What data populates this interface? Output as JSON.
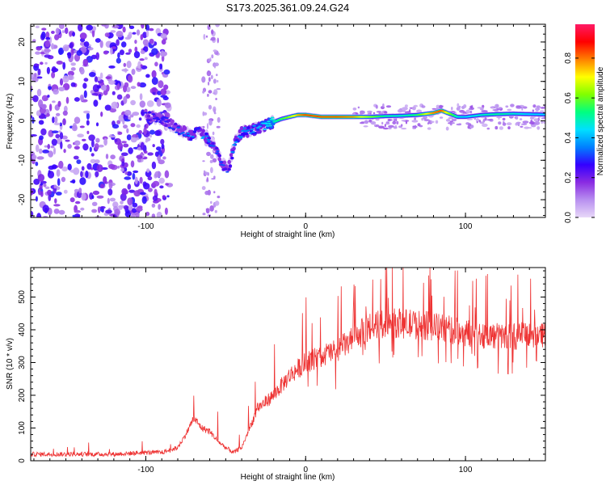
{
  "chart_data": [
    {
      "type": "heatmap",
      "title": "S173.2025.361.09.24.G24",
      "xlabel": "Height of straight line (km)",
      "ylabel": "Frequency (Hz)",
      "xlim": [
        -172,
        150
      ],
      "ylim": [
        -24.5,
        24.5
      ],
      "xticks": [
        -100,
        0,
        100
      ],
      "xtick_labels": [
        "-100",
        "0",
        "100"
      ],
      "yticks": [
        -20,
        -10,
        0,
        10,
        20
      ],
      "ytick_labels": [
        "-20",
        "-10",
        "0",
        "10",
        "20"
      ],
      "colorbar": {
        "label": "Normalized spectral amplitude",
        "range": [
          0,
          0.97
        ],
        "ticks": [
          0.0,
          0.2,
          0.4,
          0.6,
          0.8
        ],
        "tick_labels": [
          "0.0",
          "0.2",
          "0.4",
          "0.6",
          "0.8"
        ],
        "colormap": [
          "#e8d8f8",
          "#b890f0",
          "#8a2be2",
          "#3300ff",
          "#0080ff",
          "#00e0ff",
          "#00ff80",
          "#80ff00",
          "#ffff00",
          "#ff8000",
          "#ff0000",
          "#ff1a66"
        ]
      },
      "ridge": {
        "x": [
          -100,
          -90,
          -80,
          -72,
          -65,
          -58,
          -52,
          -48,
          -44,
          -40,
          -35,
          -30,
          -25,
          -20,
          -15,
          -10,
          -5,
          0,
          10,
          20,
          30,
          40,
          50,
          60,
          70,
          80,
          85,
          90,
          95,
          100,
          110,
          120,
          130,
          140,
          150
        ],
        "frequency": [
          1.5,
          0.5,
          -2.0,
          -3.5,
          -3.0,
          -6.0,
          -11.0,
          -12.0,
          -5.0,
          -3.0,
          -2.5,
          -2.0,
          -1.0,
          -0.3,
          0.5,
          1.0,
          1.5,
          1.5,
          1.0,
          1.0,
          1.0,
          1.0,
          1.2,
          1.3,
          1.5,
          2.0,
          2.6,
          1.8,
          1.0,
          1.0,
          1.5,
          1.7,
          1.8,
          1.7,
          1.6
        ],
        "amplitude": [
          0.25,
          0.25,
          0.3,
          0.35,
          0.4,
          0.3,
          0.3,
          0.3,
          0.4,
          0.35,
          0.35,
          0.4,
          0.45,
          0.5,
          0.6,
          0.7,
          0.85,
          0.95,
          0.95,
          0.95,
          0.9,
          0.7,
          0.55,
          0.5,
          0.6,
          0.9,
          0.95,
          0.7,
          0.5,
          0.45,
          0.5,
          0.55,
          0.5,
          0.45,
          0.45
        ]
      },
      "noise_region_x": [
        -172,
        -85
      ]
    },
    {
      "type": "line",
      "xlabel": "Height of straight line (km)",
      "ylabel": "SNR (10 * v/v)",
      "xlim": [
        -172,
        150
      ],
      "ylim": [
        0,
        590
      ],
      "xticks": [
        -100,
        0,
        100
      ],
      "xtick_labels": [
        "-100",
        "0",
        "100"
      ],
      "yticks": [
        0,
        100,
        200,
        300,
        400,
        500
      ],
      "ytick_labels": [
        "0",
        "100",
        "200",
        "300",
        "400",
        "500"
      ],
      "color": "#ee3333",
      "series": [
        {
          "name": "SNR",
          "x": [
            -172,
            -120,
            -100,
            -90,
            -80,
            -75,
            -70,
            -65,
            -60,
            -55,
            -50,
            -45,
            -40,
            -35,
            -30,
            -25,
            -20,
            -15,
            -10,
            -5,
            0,
            10,
            20,
            30,
            40,
            50,
            60,
            70,
            80,
            90,
            100,
            110,
            120,
            130,
            140,
            150
          ],
          "values": [
            20,
            20,
            25,
            25,
            40,
            80,
            130,
            100,
            90,
            60,
            40,
            25,
            40,
            100,
            160,
            180,
            200,
            230,
            260,
            280,
            300,
            320,
            340,
            370,
            410,
            420,
            420,
            415,
            410,
            400,
            390,
            385,
            380,
            380,
            385,
            390
          ]
        }
      ]
    }
  ]
}
